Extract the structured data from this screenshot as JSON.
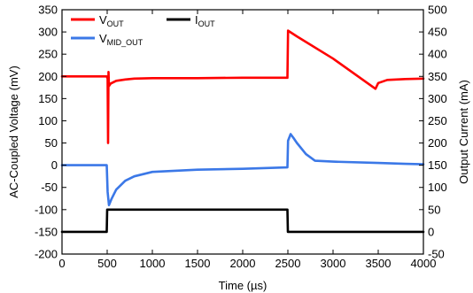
{
  "chart_data": {
    "type": "line",
    "xlabel": "Time (µs)",
    "ylabel_left": "AC-Coupled Voltage (mV)",
    "ylabel_right": "Output Current (mA)",
    "xlim": [
      0,
      4000
    ],
    "ylim_left": [
      -200,
      350
    ],
    "ylim_right": [
      -50,
      500
    ],
    "x_ticks": [
      "0",
      "500",
      "1000",
      "1500",
      "2000",
      "2500",
      "3000",
      "3500",
      "4000"
    ],
    "y_left_ticks": [
      "-200",
      "-150",
      "-100",
      "-50",
      "0",
      "50",
      "100",
      "150",
      "200",
      "250",
      "300",
      "350"
    ],
    "y_right_ticks": [
      "-50",
      "0",
      "50",
      "100",
      "150",
      "200",
      "250",
      "300",
      "350",
      "400",
      "450",
      "500"
    ],
    "grid": false,
    "legend_position": "top-left",
    "series": [
      {
        "name": "VOUT",
        "label_main": "V",
        "label_sub": "OUT",
        "color": "#ff0000",
        "axis": "left",
        "points": [
          [
            0,
            200
          ],
          [
            495,
            200
          ],
          [
            505,
            195
          ],
          [
            510,
            50
          ],
          [
            515,
            210
          ],
          [
            520,
            178
          ],
          [
            540,
            184
          ],
          [
            600,
            190
          ],
          [
            700,
            193
          ],
          [
            800,
            195
          ],
          [
            1000,
            196
          ],
          [
            1500,
            196
          ],
          [
            2000,
            197
          ],
          [
            2495,
            197
          ],
          [
            2502,
            303
          ],
          [
            2600,
            290
          ],
          [
            3000,
            240
          ],
          [
            3470,
            172
          ],
          [
            3500,
            185
          ],
          [
            3600,
            192
          ],
          [
            3800,
            194
          ],
          [
            4000,
            195
          ]
        ]
      },
      {
        "name": "VMID_OUT",
        "label_main": "V",
        "label_sub": "MID_OUT",
        "color": "#3b78e7",
        "axis": "left",
        "points": [
          [
            0,
            0
          ],
          [
            495,
            0
          ],
          [
            505,
            -60
          ],
          [
            520,
            -90
          ],
          [
            550,
            -75
          ],
          [
            600,
            -55
          ],
          [
            700,
            -35
          ],
          [
            800,
            -25
          ],
          [
            1000,
            -15
          ],
          [
            1500,
            -10
          ],
          [
            2000,
            -8
          ],
          [
            2495,
            -5
          ],
          [
            2502,
            55
          ],
          [
            2530,
            70
          ],
          [
            2560,
            62
          ],
          [
            2600,
            50
          ],
          [
            2700,
            25
          ],
          [
            2800,
            10
          ],
          [
            3000,
            8
          ],
          [
            3500,
            5
          ],
          [
            3800,
            3
          ],
          [
            4000,
            2
          ]
        ]
      },
      {
        "name": "IOUT",
        "label_main": "I",
        "label_sub": "OUT",
        "color": "#000000",
        "axis": "right",
        "points": [
          [
            0,
            0
          ],
          [
            495,
            0
          ],
          [
            500,
            50
          ],
          [
            2495,
            50
          ],
          [
            2500,
            0
          ],
          [
            4000,
            0
          ]
        ]
      }
    ]
  }
}
